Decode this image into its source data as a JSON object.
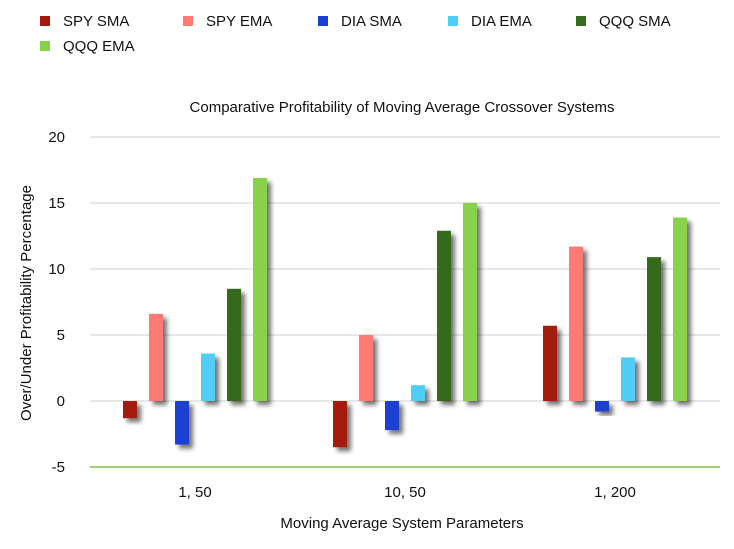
{
  "chart_data": {
    "type": "bar",
    "title": "Comparative Profitability of Moving Average Crossover Systems",
    "xlabel": "Moving Average System Parameters",
    "ylabel": "Over/Under Profitability Percentage",
    "categories": [
      "1, 50",
      "10, 50",
      "1, 200"
    ],
    "ylim": [
      -5,
      20
    ],
    "yticks": [
      -5,
      0,
      5,
      10,
      15,
      20
    ],
    "grid": "horizontal",
    "legend_position": "top",
    "series": [
      {
        "name": "SPY SMA",
        "color": "#a31a0c",
        "values": [
          -1.3,
          -3.5,
          5.7
        ]
      },
      {
        "name": "SPY EMA",
        "color": "#ff7a72",
        "values": [
          6.6,
          5.0,
          11.7
        ]
      },
      {
        "name": "DIA SMA",
        "color": "#1d3fd1",
        "values": [
          -3.3,
          -2.2,
          -0.8
        ]
      },
      {
        "name": "DIA EMA",
        "color": "#4fcdf7",
        "values": [
          3.6,
          1.2,
          3.3
        ]
      },
      {
        "name": "QQQ SMA",
        "color": "#356b1c",
        "values": [
          8.5,
          12.9,
          10.9
        ]
      },
      {
        "name": "QQQ EMA",
        "color": "#88d14b",
        "values": [
          16.9,
          15.0,
          13.9
        ]
      }
    ]
  }
}
